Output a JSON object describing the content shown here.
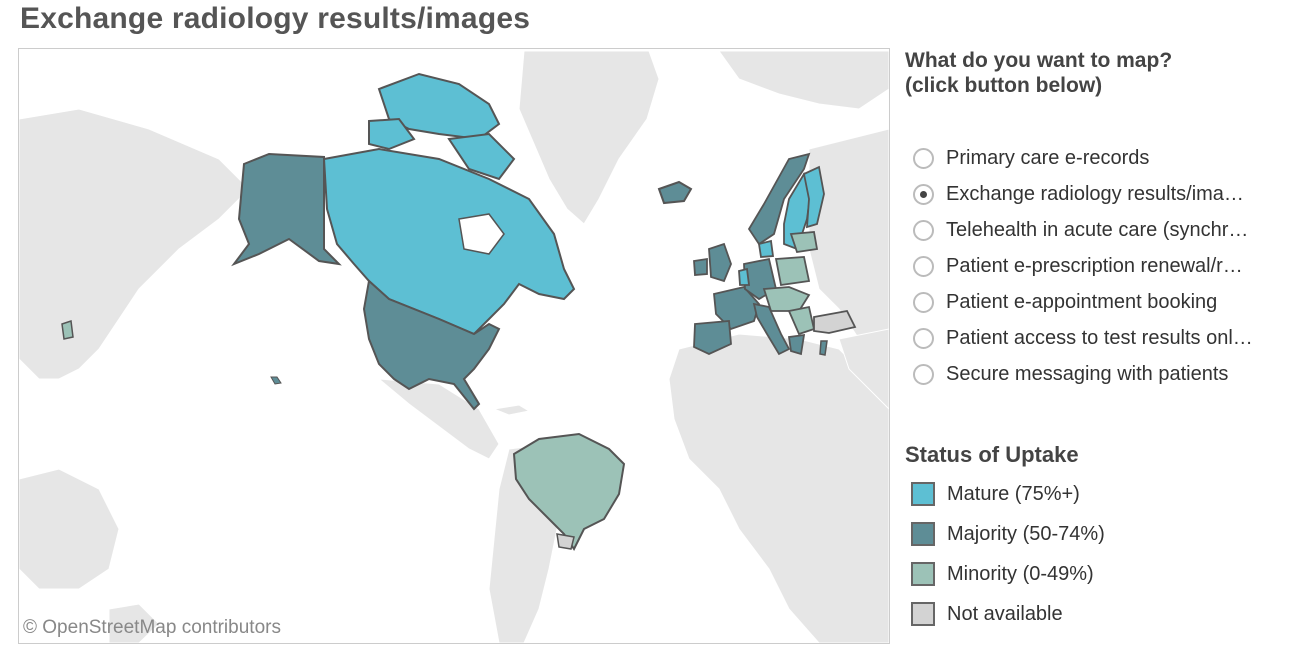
{
  "title": "Exchange radiology results/images",
  "map": {
    "attribution": "© OpenStreetMap contributors",
    "colors": {
      "mature": "#5dbfd3",
      "majority": "#5e8d96",
      "minority": "#9cc2b7",
      "not_available": "#d3d3d3",
      "land": "#e6e6e6",
      "border": "#555555"
    }
  },
  "panel": {
    "heading_line1": "What do you want to map?",
    "heading_line2": "(click button below)",
    "options": [
      {
        "label": "Primary care e-records",
        "checked": false
      },
      {
        "label": "Exchange radiology results/ima…",
        "checked": true
      },
      {
        "label": "Telehealth in acute care (synchr…",
        "checked": false
      },
      {
        "label": "Patient e-prescription renewal/r…",
        "checked": false
      },
      {
        "label": "Patient e-appointment booking",
        "checked": false
      },
      {
        "label": "Patient access to test results onl…",
        "checked": false
      },
      {
        "label": "Secure messaging with patients",
        "checked": false
      }
    ]
  },
  "legend": {
    "title": "Status of Uptake",
    "items": [
      {
        "label": "Mature (75%+)",
        "color": "#5dbfd3"
      },
      {
        "label": "Majority (50-74%)",
        "color": "#5e8d96"
      },
      {
        "label": "Minority (0-49%)",
        "color": "#9cc2b7"
      },
      {
        "label": "Not available",
        "color": "#d3d3d3"
      }
    ]
  }
}
